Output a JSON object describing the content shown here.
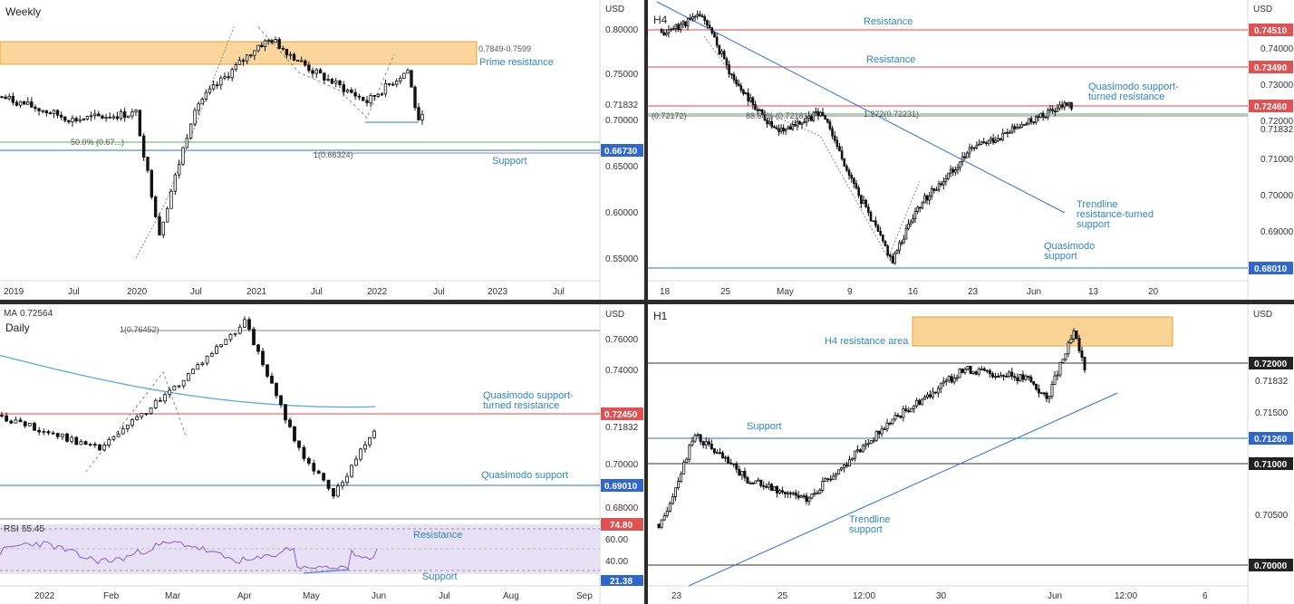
{
  "colors": {
    "candle": "#111111",
    "resistance_zone": "#f8c77b",
    "zone_border": "#e8a23a",
    "red_level": "#e2474d",
    "blue_level": "#2e6fd8",
    "price_tag": "#e05252",
    "support_tag": "#2f67cf",
    "note_text": "#2e86c1",
    "ma_line": "#5aa9de",
    "rsi_line": "#8e5cc8",
    "rsi_band": "#e8e0f5",
    "fib_green": "#52b35a"
  },
  "panels": {
    "weekly": {
      "timeframe": "Weekly",
      "currency": "USD",
      "axis_prices": [
        "0.80000",
        "0.75000",
        "0.71832",
        "0.70000",
        "0.65000",
        "0.60000",
        "0.55000"
      ],
      "x_labels": [
        "2019",
        "Jul",
        "2020",
        "Jul",
        "2021",
        "Jul",
        "2022",
        "Jul",
        "2023",
        "Jul"
      ],
      "zone_label": "0.7849-0.7599",
      "annotations": {
        "prime_resistance": "Prime resistance",
        "support": "Support",
        "fib_50": "50.0% (0.67...)",
        "fib_1": "1(0.66324)"
      },
      "price_tags": {
        "support": "0.66730"
      }
    },
    "h4": {
      "timeframe": "H4",
      "currency": "USD",
      "axis_prices": [
        "0.74000",
        "0.73000",
        "0.72000",
        "0.71832",
        "0.71000",
        "0.70000",
        "0.69000"
      ],
      "x_labels": [
        "18",
        "25",
        "May",
        "9",
        "16",
        "23",
        "Jun",
        "13",
        "20"
      ],
      "annotations": {
        "resistance_top": "Resistance",
        "resistance_mid": "Resistance",
        "qm_resistance_1": "Quasimodo support-",
        "qm_resistance_2": "turned resistance",
        "trendline_1": "Trendline",
        "trendline_2": "resistance-turned",
        "trendline_3": "support",
        "qm_support_1": "Quasimodo",
        "qm_support_2": "support",
        "left_level": "(0.72172)",
        "fib_886": "88.60% (0.72181)",
        "fib_1272": "1.272(0.72231)"
      },
      "price_tags": {
        "r1": "0.74510",
        "r2": "0.73490",
        "r3": "0.72460",
        "s1": "0.68010"
      }
    },
    "daily": {
      "timeframe": "Daily",
      "currency": "USD",
      "ma_label": "MA",
      "ma_value": "0.72564",
      "axis_prices": [
        "0.76000",
        "0.74000",
        "0.71832",
        "0.70000",
        "0.68000"
      ],
      "x_labels": [
        "2022",
        "Feb",
        "Mar",
        "Apr",
        "May",
        "Jun",
        "Jul",
        "Aug",
        "Sep"
      ],
      "annotations": {
        "fib_1": "1(0.76452)",
        "qm_resistance_1": "Quasimodo support-",
        "qm_resistance_2": "turned resistance",
        "qm_support": "Quasimodo support"
      },
      "price_tags": {
        "resistance": "0.72450",
        "support": "0.69010"
      },
      "rsi": {
        "label": "RSI",
        "value": "55.45",
        "axis": [
          "60.00",
          "40.00"
        ],
        "tags": {
          "upper": "74.80",
          "lower": "21.38"
        },
        "annotations": {
          "resistance": "Resistance",
          "support": "Support"
        }
      }
    },
    "h1": {
      "timeframe": "H1",
      "currency": "USD",
      "axis_prices": [
        "0.71832",
        "0.71500",
        "0.70500"
      ],
      "x_labels": [
        "23",
        "25",
        "12:00",
        "30",
        "Jun",
        "12:00",
        "6"
      ],
      "annotations": {
        "h4_area": "H4 resistance area",
        "support": "Support",
        "trendline_1": "Trendline",
        "trendline_2": "support"
      },
      "price_tags": {
        "l1": "0.72000",
        "l2": "0.71260",
        "l3": "0.71000",
        "l4": "0.70000"
      }
    }
  },
  "chart_data": [
    {
      "type": "candlestick",
      "title": "Weekly",
      "ylabel": "USD",
      "ylim": [
        0.53,
        0.815
      ],
      "levels": [
        0.7849,
        0.7599,
        0.6673,
        0.66324
      ],
      "close_path": [
        {
          "x": "2019",
          "y": 0.718
        },
        {
          "x": "Jul",
          "y": 0.694
        },
        {
          "x": "2020",
          "y": 0.701
        },
        {
          "x": "2020-03",
          "y": 0.575
        },
        {
          "x": "Jul",
          "y": 0.708
        },
        {
          "x": "2021",
          "y": 0.772
        },
        {
          "x": "2021-02",
          "y": 0.778
        },
        {
          "x": "Jul",
          "y": 0.745
        },
        {
          "x": "2022",
          "y": 0.713
        },
        {
          "x": "2022-04",
          "y": 0.746
        },
        {
          "x": "2022-05",
          "y": 0.69
        },
        {
          "x": "2022-06",
          "y": 0.718
        }
      ]
    },
    {
      "type": "candlestick",
      "title": "H4",
      "ylabel": "USD",
      "ylim": [
        0.678,
        0.7475
      ],
      "levels": [
        0.7451,
        0.7349,
        0.7246,
        0.7223,
        0.7218,
        0.7217,
        0.6801
      ],
      "close_path": [
        {
          "x": "18",
          "y": 0.74
        },
        {
          "x": "20",
          "y": 0.745
        },
        {
          "x": "25",
          "y": 0.728
        },
        {
          "x": "May",
          "y": 0.715
        },
        {
          "x": "5",
          "y": 0.72
        },
        {
          "x": "9",
          "y": 0.7
        },
        {
          "x": "12",
          "y": 0.682
        },
        {
          "x": "16",
          "y": 0.695
        },
        {
          "x": "23",
          "y": 0.71
        },
        {
          "x": "Jun",
          "y": 0.7223
        },
        {
          "x": "Jun-03",
          "y": 0.7183
        }
      ]
    },
    {
      "type": "candlestick",
      "title": "Daily",
      "ylabel": "USD",
      "ylim": [
        0.673,
        0.771
      ],
      "moving_average": 0.72564,
      "levels": [
        0.76452,
        0.7245,
        0.6901
      ],
      "close_path": [
        {
          "x": "2022",
          "y": 0.72
        },
        {
          "x": "Feb",
          "y": 0.705
        },
        {
          "x": "Mar",
          "y": 0.73
        },
        {
          "x": "Apr",
          "y": 0.765
        },
        {
          "x": "May",
          "y": 0.705
        },
        {
          "x": "May-12",
          "y": 0.683
        },
        {
          "x": "Jun",
          "y": 0.7183
        }
      ],
      "rsi": {
        "value": 55.45,
        "upper": 74.8,
        "lower": 21.38
      }
    },
    {
      "type": "candlestick",
      "title": "H1",
      "ylabel": "USD",
      "ylim": [
        0.6985,
        0.7245
      ],
      "zone": [
        0.7218,
        0.7236
      ],
      "levels": [
        0.72,
        0.7126,
        0.71,
        0.7
      ],
      "close_path": [
        {
          "x": "23",
          "y": 0.703
        },
        {
          "x": "24",
          "y": 0.7125
        },
        {
          "x": "25",
          "y": 0.708
        },
        {
          "x": "26",
          "y": 0.706
        },
        {
          "x": "12:00",
          "y": 0.714
        },
        {
          "x": "30",
          "y": 0.719
        },
        {
          "x": "31",
          "y": 0.718
        },
        {
          "x": "Jun",
          "y": 0.716
        },
        {
          "x": "Jun-02",
          "y": 0.7225
        },
        {
          "x": "Jun-03",
          "y": 0.7183
        }
      ]
    }
  ]
}
